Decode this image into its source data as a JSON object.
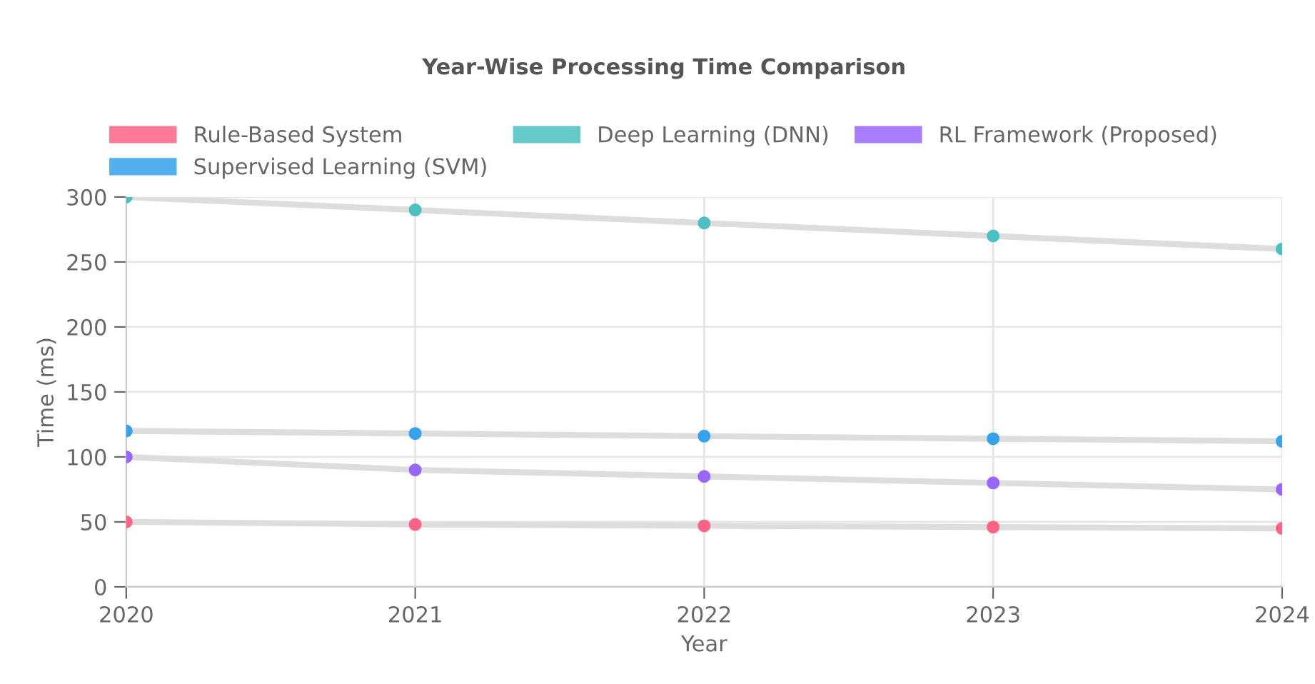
{
  "chart_data": {
    "type": "line",
    "title": "Year-Wise Processing Time Comparison",
    "xlabel": "Year",
    "ylabel": "Time (ms)",
    "categories": [
      "2020",
      "2021",
      "2022",
      "2023",
      "2024"
    ],
    "series": [
      {
        "name": "Rule-Based System",
        "color": "#ff6384",
        "values": [
          50,
          48,
          47,
          46,
          45
        ]
      },
      {
        "name": "Supervised Learning (SVM)",
        "color": "#36a2eb",
        "values": [
          120,
          118,
          116,
          114,
          112
        ]
      },
      {
        "name": "Deep Learning (DNN)",
        "color": "#4bc0c0",
        "values": [
          300,
          290,
          280,
          270,
          260
        ]
      },
      {
        "name": "RL Framework (Proposed)",
        "color": "#9966ff",
        "values": [
          100,
          90,
          85,
          80,
          75
        ]
      }
    ],
    "ylim": [
      0,
      300
    ],
    "yticks": [
      0,
      50,
      100,
      150,
      200,
      250,
      300
    ],
    "grid": true,
    "legend": "top",
    "marker": "circle"
  }
}
